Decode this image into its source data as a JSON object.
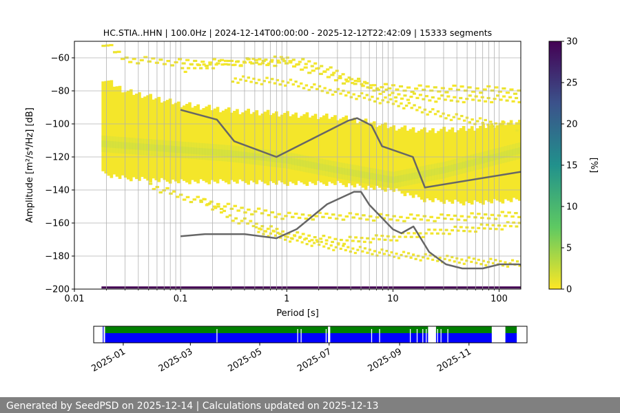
{
  "chart_data": {
    "type": "heatmap",
    "title": "HC.STIA..HHN | 100.0Hz | 2024-12-14T00:00:00 - 2025-12-12T22:42:09 | 15333 segments",
    "xlabel": "Period [s]",
    "ylabel": "Amplitude [m²/s⁴/Hz] [dB]",
    "xscale": "log",
    "xlim": [
      0.01,
      160
    ],
    "ylim": [
      -200,
      -50
    ],
    "xticks": [
      {
        "value": 0.01,
        "label": "0.01"
      },
      {
        "value": 0.1,
        "label": "0.1"
      },
      {
        "value": 1,
        "label": "1"
      },
      {
        "value": 10,
        "label": "10"
      },
      {
        "value": 100,
        "label": "100"
      }
    ],
    "yticks": [
      {
        "value": -60,
        "label": "−60"
      },
      {
        "value": -80,
        "label": "−80"
      },
      {
        "value": -100,
        "label": "−100"
      },
      {
        "value": -120,
        "label": "−120"
      },
      {
        "value": -140,
        "label": "−140"
      },
      {
        "value": -160,
        "label": "−160"
      },
      {
        "value": -180,
        "label": "−180"
      },
      {
        "value": -200,
        "label": "−200"
      }
    ],
    "grid": true,
    "data_period_range": [
      0.018,
      160
    ],
    "colorbar": {
      "label": "[%]",
      "range": [
        0,
        30
      ],
      "ticks": [
        {
          "value": 0,
          "label": "0"
        },
        {
          "value": 5,
          "label": "5"
        },
        {
          "value": 10,
          "label": "10"
        },
        {
          "value": 15,
          "label": "15"
        },
        {
          "value": 20,
          "label": "20"
        },
        {
          "value": 25,
          "label": "25"
        },
        {
          "value": 30,
          "label": "30"
        }
      ],
      "colormap": [
        "#440154",
        "#3b528b",
        "#21918c",
        "#5ec962",
        "#fde725"
      ]
    },
    "density": {
      "main_band": {
        "period": [
          0.018,
          0.03,
          0.1,
          0.3,
          1,
          3,
          5,
          10,
          20,
          50,
          160
        ],
        "upper": [
          -72,
          -80,
          -88,
          -92,
          -94,
          -96,
          -98,
          -102,
          -104,
          -103,
          -98
        ],
        "lower": [
          -130,
          -133,
          -135,
          -135,
          -136,
          -136,
          -138,
          -140,
          -146,
          -148,
          -146
        ]
      },
      "upper_trace_1": {
        "period": [
          0.018,
          0.03,
          0.1,
          0.3,
          1,
          2,
          4,
          8,
          20,
          50,
          160
        ],
        "amplitude": [
          -51,
          -62,
          -64,
          -64,
          -64,
          -70,
          -76,
          -79,
          -80,
          -80,
          -81
        ]
      },
      "upper_trace_2": {
        "period": [
          0.1,
          0.3,
          1,
          2,
          4,
          10,
          30,
          160
        ],
        "amplitude": [
          -68,
          -64,
          -62,
          -66,
          -74,
          -84,
          -86,
          -86
        ]
      },
      "upper_trace_3": {
        "period": [
          0.3,
          1,
          3,
          10,
          30,
          160
        ],
        "amplitude": [
          -74,
          -76,
          -82,
          -88,
          -96,
          -104
        ]
      },
      "lower_trace_1": {
        "period": [
          0.05,
          0.1,
          0.3,
          1,
          3,
          10,
          30,
          160
        ],
        "amplitude": [
          -138,
          -145,
          -152,
          -157,
          -157,
          -158,
          -158,
          -156
        ]
      },
      "lower_trace_2": {
        "period": [
          0.15,
          0.3,
          1,
          3,
          10,
          30,
          160
        ],
        "amplitude": [
          -146,
          -158,
          -168,
          -172,
          -170,
          -166,
          -162
        ]
      },
      "lower_trace_3": {
        "period": [
          0.5,
          1,
          3,
          10,
          20,
          50,
          160
        ],
        "amplitude": [
          -165,
          -170,
          -176,
          -180,
          -182,
          -184,
          -186
        ]
      },
      "mode_band": {
        "period": [
          0.018,
          0.3,
          1,
          3,
          10,
          30,
          160
        ],
        "amplitude": [
          -112,
          -118,
          -122,
          -128,
          -134,
          -128,
          -116
        ]
      },
      "floor_row": -199
    },
    "series": [
      {
        "name": "NHNM",
        "color": "#666666",
        "x": [
          0.1,
          0.22,
          0.32,
          0.8,
          3.8,
          4.6,
          6.3,
          7.9,
          15.4,
          20,
          160
        ],
        "y": [
          -91.5,
          -97.4,
          -110.5,
          -120,
          -98,
          -96.5,
          -101,
          -113.5,
          -120,
          -138.5,
          -129
        ]
      },
      {
        "name": "NLNM",
        "color": "#666666",
        "x": [
          0.1,
          0.17,
          0.4,
          0.8,
          1.24,
          2.4,
          4.3,
          5,
          6,
          10,
          12,
          15.6,
          21.9,
          31.6,
          45,
          70,
          101,
          154,
          160
        ],
        "y": [
          -168,
          -166.7,
          -166.7,
          -169.2,
          -163.7,
          -148.6,
          -141.1,
          -141.1,
          -149,
          -163.8,
          -166.2,
          -162.1,
          -177.5,
          -185,
          -187.5,
          -187.5,
          -185,
          -185,
          -185.3
        ]
      }
    ]
  },
  "availability": {
    "tick_labels": [
      "2025-01",
      "2025-03",
      "2025-05",
      "2025-07",
      "2025-09",
      "2025-11"
    ],
    "tick_dates": [
      "2025-01-01",
      "2025-03-01",
      "2025-05-01",
      "2025-07-01",
      "2025-09-01",
      "2025-11-01"
    ],
    "range": [
      "2024-12-06",
      "2025-12-22"
    ],
    "colors": {
      "data": "#0000ff",
      "psd": "#008000"
    },
    "data_spans": [
      [
        "2024-12-14",
        "2025-11-21"
      ],
      [
        "2025-12-03",
        "2025-12-13"
      ]
    ],
    "psd_spans": [
      [
        "2024-12-14",
        "2025-11-21"
      ],
      [
        "2025-12-03",
        "2025-12-13"
      ]
    ],
    "data_gaps": [
      "2025-03-24",
      "2025-06-03",
      "2025-06-06",
      "2025-06-28",
      "2025-08-07",
      "2025-08-14",
      "2025-09-10",
      "2025-09-16",
      "2025-09-21",
      "2025-09-24",
      "2025-10-04",
      "2025-10-07",
      "2025-10-13"
    ],
    "wide_gaps": [
      [
        "2025-06-30",
        "2025-07-02"
      ],
      [
        "2025-09-26",
        "2025-10-03"
      ]
    ],
    "tail_gap": [
      "2024-12-14",
      "2024-12-16"
    ]
  },
  "footer": {
    "text": "Generated by SeedPSD on 2025-12-14 | Calculations updated on 2025-12-13"
  }
}
